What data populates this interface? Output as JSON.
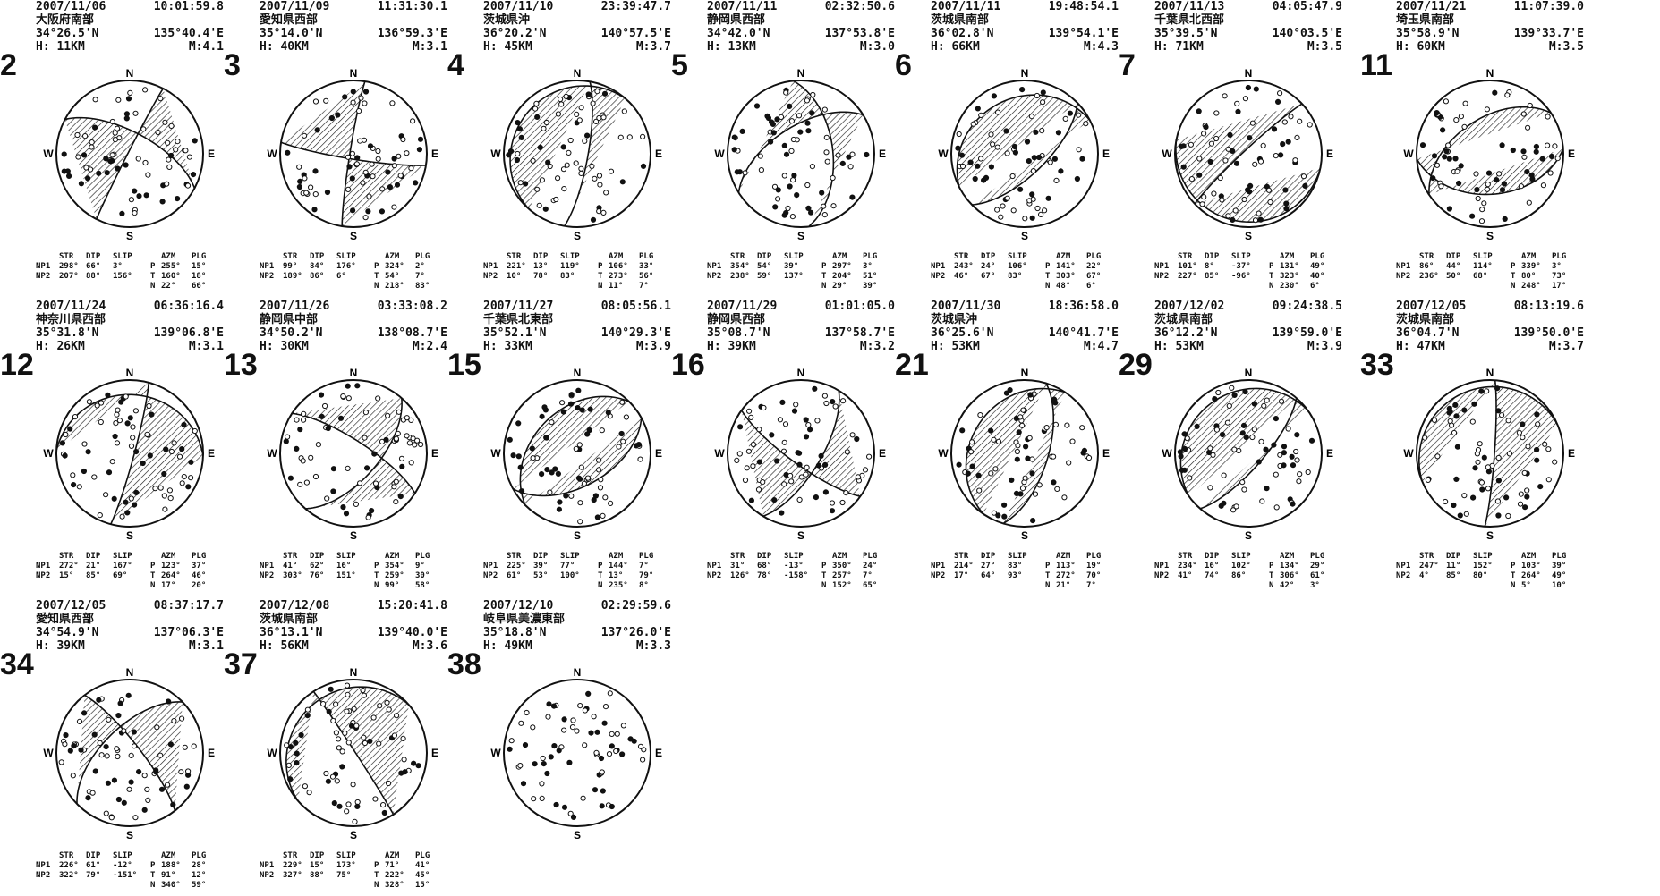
{
  "events": [
    {
      "num": "2",
      "date": "2007/11/06",
      "time": "10:01:59.8",
      "place": "大阪府南部",
      "lat": "34°26.5'N",
      "lon": "135°40.4'E",
      "depth": "H: 11KM",
      "mag": "M:4.1",
      "np1": [
        "NP1",
        "298°",
        "66°",
        "3°"
      ],
      "np2": [
        "NP2",
        "207°",
        "88°",
        "156°"
      ],
      "p": [
        "P",
        "255°",
        "15°"
      ],
      "t": [
        "T",
        "160°",
        "18°"
      ],
      "n": [
        "N",
        "22°",
        "66°"
      ]
    },
    {
      "num": "3",
      "date": "2007/11/09",
      "time": "11:31:30.1",
      "place": "愛知県西部",
      "lat": "35°14.0'N",
      "lon": "136°59.3'E",
      "depth": "H: 40KM",
      "mag": "M:3.1",
      "np1": [
        "NP1",
        "99°",
        "84°",
        "176°"
      ],
      "np2": [
        "NP2",
        "189°",
        "86°",
        "6°"
      ],
      "p": [
        "P",
        "324°",
        "2°"
      ],
      "t": [
        "T",
        "54°",
        "7°"
      ],
      "n": [
        "N",
        "218°",
        "83°"
      ]
    },
    {
      "num": "4",
      "date": "2007/11/10",
      "time": "23:39:47.7",
      "place": "茨城県沖",
      "lat": "36°20.2'N",
      "lon": "140°57.5'E",
      "depth": "H: 45KM",
      "mag": "M:3.7",
      "np1": [
        "NP1",
        "221°",
        "13°",
        "119°"
      ],
      "np2": [
        "NP2",
        "10°",
        "78°",
        "83°"
      ],
      "p": [
        "P",
        "106°",
        "33°"
      ],
      "t": [
        "T",
        "273°",
        "56°"
      ],
      "n": [
        "N",
        "11°",
        "7°"
      ]
    },
    {
      "num": "5",
      "date": "2007/11/11",
      "time": "02:32:50.6",
      "place": "静岡県西部",
      "lat": "34°42.0'N",
      "lon": "137°53.8'E",
      "depth": "H: 13KM",
      "mag": "M:3.0",
      "np1": [
        "NP1",
        "354°",
        "54°",
        "39°"
      ],
      "np2": [
        "NP2",
        "238°",
        "59°",
        "137°"
      ],
      "p": [
        "P",
        "297°",
        "3°"
      ],
      "t": [
        "T",
        "204°",
        "51°"
      ],
      "n": [
        "N",
        "29°",
        "39°"
      ]
    },
    {
      "num": "6",
      "date": "2007/11/11",
      "time": "19:48:54.1",
      "place": "茨城県南部",
      "lat": "36°02.8'N",
      "lon": "139°54.1'E",
      "depth": "H: 66KM",
      "mag": "M:4.3",
      "np1": [
        "NP1",
        "243°",
        "24°",
        "106°"
      ],
      "np2": [
        "NP2",
        "46°",
        "67°",
        "83°"
      ],
      "p": [
        "P",
        "141°",
        "22°"
      ],
      "t": [
        "T",
        "303°",
        "67°"
      ],
      "n": [
        "N",
        "48°",
        "6°"
      ]
    },
    {
      "num": "7",
      "date": "2007/11/13",
      "time": "04:05:47.9",
      "place": "千葉県北西部",
      "lat": "35°39.5'N",
      "lon": "140°03.5'E",
      "depth": "H: 71KM",
      "mag": "M:3.5",
      "np1": [
        "NP1",
        "101°",
        "8°",
        "-37°"
      ],
      "np2": [
        "NP2",
        "227°",
        "85°",
        "-96°"
      ],
      "p": [
        "P",
        "131°",
        "49°"
      ],
      "t": [
        "T",
        "323°",
        "40°"
      ],
      "n": [
        "N",
        "230°",
        "6°"
      ]
    },
    {
      "num": "11",
      "date": "2007/11/21",
      "time": "11:07:39.0",
      "place": "埼玉県南部",
      "lat": "35°58.9'N",
      "lon": "139°33.7'E",
      "depth": "H: 60KM",
      "mag": "M:3.5",
      "np1": [
        "NP1",
        "86°",
        "44°",
        "114°"
      ],
      "np2": [
        "NP2",
        "236°",
        "50°",
        "68°"
      ],
      "p": [
        "P",
        "339°",
        "3°"
      ],
      "t": [
        "T",
        "80°",
        "73°"
      ],
      "n": [
        "N",
        "248°",
        "17°"
      ]
    },
    {
      "num": "12",
      "date": "2007/11/24",
      "time": "06:36:16.4",
      "place": "神奈川県西部",
      "lat": "35°31.8'N",
      "lon": "139°06.8'E",
      "depth": "H: 26KM",
      "mag": "M:3.1",
      "np1": [
        "NP1",
        "272°",
        "21°",
        "167°"
      ],
      "np2": [
        "NP2",
        "15°",
        "85°",
        "69°"
      ],
      "p": [
        "P",
        "123°",
        "37°"
      ],
      "t": [
        "T",
        "264°",
        "46°"
      ],
      "n": [
        "N",
        "17°",
        "20°"
      ]
    },
    {
      "num": "13",
      "date": "2007/11/26",
      "time": "03:33:08.2",
      "place": "静岡県中部",
      "lat": "34°50.2'N",
      "lon": "138°08.7'E",
      "depth": "H: 30KM",
      "mag": "M:2.4",
      "np1": [
        "NP1",
        "41°",
        "62°",
        "16°"
      ],
      "np2": [
        "NP2",
        "303°",
        "76°",
        "151°"
      ],
      "p": [
        "P",
        "354°",
        "9°"
      ],
      "t": [
        "T",
        "259°",
        "30°"
      ],
      "n": [
        "N",
        "99°",
        "58°"
      ]
    },
    {
      "num": "15",
      "date": "2007/11/27",
      "time": "08:05:56.1",
      "place": "千葉県北東部",
      "lat": "35°52.1'N",
      "lon": "140°29.3'E",
      "depth": "H: 33KM",
      "mag": "M:3.9",
      "np1": [
        "NP1",
        "225°",
        "39°",
        "77°"
      ],
      "np2": [
        "NP2",
        "61°",
        "53°",
        "100°"
      ],
      "p": [
        "P",
        "144°",
        "7°"
      ],
      "t": [
        "T",
        "13°",
        "79°"
      ],
      "n": [
        "N",
        "235°",
        "8°"
      ]
    },
    {
      "num": "16",
      "date": "2007/11/29",
      "time": "01:01:05.0",
      "place": "静岡県西部",
      "lat": "35°08.7'N",
      "lon": "137°58.7'E",
      "depth": "H: 39KM",
      "mag": "M:3.2",
      "np1": [
        "NP1",
        "31°",
        "68°",
        "-13°"
      ],
      "np2": [
        "NP2",
        "126°",
        "78°",
        "-158°"
      ],
      "p": [
        "P",
        "350°",
        "24°"
      ],
      "t": [
        "T",
        "257°",
        "7°"
      ],
      "n": [
        "N",
        "152°",
        "65°"
      ]
    },
    {
      "num": "21",
      "date": "2007/11/30",
      "time": "18:36:58.0",
      "place": "茨城県沖",
      "lat": "36°25.6'N",
      "lon": "140°41.7'E",
      "depth": "H: 53KM",
      "mag": "M:4.7",
      "np1": [
        "NP1",
        "214°",
        "27°",
        "83°"
      ],
      "np2": [
        "NP2",
        "17°",
        "64°",
        "93°"
      ],
      "p": [
        "P",
        "113°",
        "19°"
      ],
      "t": [
        "T",
        "272°",
        "70°"
      ],
      "n": [
        "N",
        "21°",
        "7°"
      ]
    },
    {
      "num": "29",
      "date": "2007/12/02",
      "time": "09:24:38.5",
      "place": "茨城県南部",
      "lat": "36°12.2'N",
      "lon": "139°59.0'E",
      "depth": "H: 53KM",
      "mag": "M:3.9",
      "np1": [
        "NP1",
        "234°",
        "16°",
        "102°"
      ],
      "np2": [
        "NP2",
        "41°",
        "74°",
        "86°"
      ],
      "p": [
        "P",
        "134°",
        "29°"
      ],
      "t": [
        "T",
        "306°",
        "61°"
      ],
      "n": [
        "N",
        "42°",
        "3°"
      ]
    },
    {
      "num": "33",
      "date": "2007/12/05",
      "time": "08:13:19.6",
      "place": "茨城県南部",
      "lat": "36°04.7'N",
      "lon": "139°50.0'E",
      "depth": "H: 47KM",
      "mag": "M:3.7",
      "np1": [
        "NP1",
        "247°",
        "11°",
        "152°"
      ],
      "np2": [
        "NP2",
        "4°",
        "85°",
        "80°"
      ],
      "p": [
        "P",
        "103°",
        "39°"
      ],
      "t": [
        "T",
        "264°",
        "49°"
      ],
      "n": [
        "N",
        "5°",
        "10°"
      ]
    },
    {
      "num": "34",
      "date": "2007/12/05",
      "time": "08:37:17.7",
      "place": "愛知県西部",
      "lat": "34°54.9'N",
      "lon": "137°06.3'E",
      "depth": "H: 39KM",
      "mag": "M:3.1",
      "np1": [
        "NP1",
        "226°",
        "61°",
        "-12°"
      ],
      "np2": [
        "NP2",
        "322°",
        "79°",
        "-151°"
      ],
      "p": [
        "P",
        "188°",
        "28°"
      ],
      "t": [
        "T",
        "91°",
        "12°"
      ],
      "n": [
        "N",
        "340°",
        "59°"
      ]
    },
    {
      "num": "37",
      "date": "2007/12/08",
      "time": "15:20:41.8",
      "place": "茨城県南部",
      "lat": "36°13.1'N",
      "lon": "139°40.0'E",
      "depth": "H: 56KM",
      "mag": "M:3.6",
      "np1": [
        "NP1",
        "229°",
        "15°",
        "173°"
      ],
      "np2": [
        "NP2",
        "327°",
        "88°",
        "75°"
      ],
      "p": [
        "P",
        "71°",
        "41°"
      ],
      "t": [
        "T",
        "222°",
        "45°"
      ],
      "n": [
        "N",
        "328°",
        "15°"
      ]
    },
    {
      "num": "38",
      "date": "2007/12/10",
      "time": "02:29:59.6",
      "place": "岐阜県美濃東部",
      "lat": "35°18.8'N",
      "lon": "137°26.0'E",
      "depth": "H: 49KM",
      "mag": "M:3.3",
      "np1": null,
      "np2": null,
      "p": null,
      "t": null,
      "n": null
    }
  ],
  "labels": {
    "n": "N",
    "s": "S",
    "e": "E",
    "w": "W",
    "str": "STR",
    "dip": "DIP",
    "slip": "SLIP",
    "azm": "AZM",
    "plg": "PLG"
  }
}
